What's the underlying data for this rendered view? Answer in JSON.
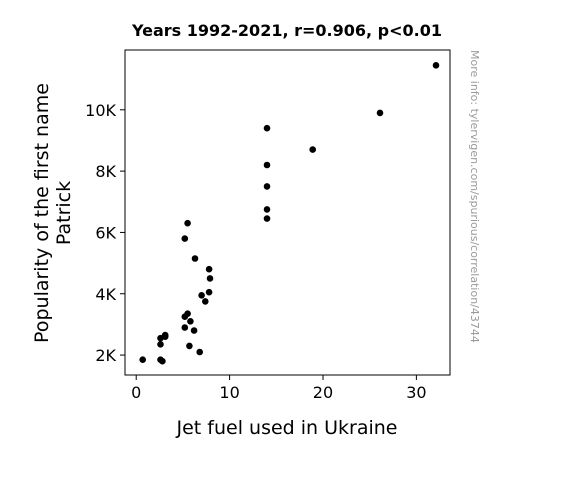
{
  "chart_data": {
    "type": "scatter",
    "title": "Years 1992-2021, r=0.906, p<0.01",
    "xlabel": "Jet fuel used in Ukraine",
    "ylabel_lines": [
      "Popularity of the first name",
      "Patrick"
    ],
    "watermark": "More info: tylervigen.com/spurious/correlation/43744",
    "xlim": [
      -1.2,
      33.6
    ],
    "ylim": [
      1350,
      11950
    ],
    "xticks": [
      0,
      10,
      20,
      30
    ],
    "xtick_labels": [
      "0",
      "10",
      "20",
      "30"
    ],
    "yticks": [
      2000,
      4000,
      6000,
      8000,
      10000
    ],
    "ytick_labels": [
      "2K",
      "4K",
      "6K",
      "8K",
      "10K"
    ],
    "grid": false,
    "marker_color": "#000000",
    "points": [
      {
        "x": 0.7,
        "y": 1850
      },
      {
        "x": 2.6,
        "y": 1850
      },
      {
        "x": 2.8,
        "y": 1800
      },
      {
        "x": 2.6,
        "y": 2350
      },
      {
        "x": 2.6,
        "y": 2550
      },
      {
        "x": 3.1,
        "y": 2600
      },
      {
        "x": 3.1,
        "y": 2650
      },
      {
        "x": 5.2,
        "y": 3250
      },
      {
        "x": 5.5,
        "y": 3350
      },
      {
        "x": 5.2,
        "y": 2900
      },
      {
        "x": 5.8,
        "y": 3100
      },
      {
        "x": 6.2,
        "y": 2800
      },
      {
        "x": 5.7,
        "y": 2300
      },
      {
        "x": 6.8,
        "y": 2100
      },
      {
        "x": 5.2,
        "y": 5800
      },
      {
        "x": 5.5,
        "y": 6300
      },
      {
        "x": 6.3,
        "y": 5150
      },
      {
        "x": 7.0,
        "y": 3950
      },
      {
        "x": 7.4,
        "y": 3750
      },
      {
        "x": 7.8,
        "y": 4050
      },
      {
        "x": 7.9,
        "y": 4500
      },
      {
        "x": 7.8,
        "y": 4800
      },
      {
        "x": 14.0,
        "y": 9400
      },
      {
        "x": 14.0,
        "y": 8200
      },
      {
        "x": 14.0,
        "y": 7500
      },
      {
        "x": 14.0,
        "y": 6750
      },
      {
        "x": 14.0,
        "y": 6450
      },
      {
        "x": 18.9,
        "y": 8700
      },
      {
        "x": 26.1,
        "y": 9900
      },
      {
        "x": 32.1,
        "y": 11450
      }
    ]
  }
}
